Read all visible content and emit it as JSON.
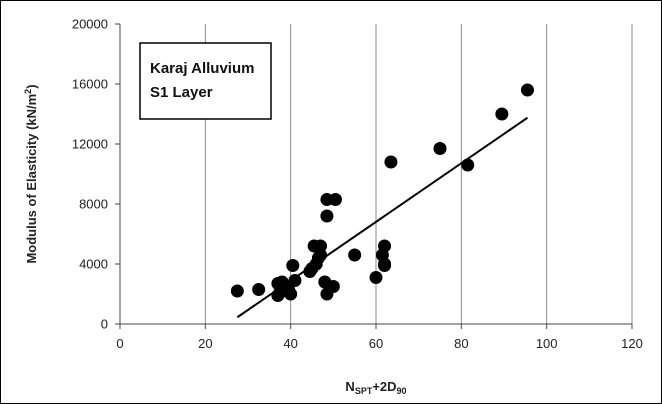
{
  "chart_data": {
    "type": "scatter",
    "title": "",
    "xlabel": {
      "main": "N",
      "sub1": "SPT",
      "mid": "+2D",
      "sub2": "90"
    },
    "ylabel": {
      "main": "Modulus of Elasticity (kN/m",
      "sup": "2",
      "end": ")"
    },
    "xlim": [
      0,
      120
    ],
    "ylim": [
      0,
      20000
    ],
    "xticks": [
      0,
      20,
      40,
      60,
      80,
      100,
      120
    ],
    "yticks": [
      0,
      4000,
      8000,
      12000,
      16000,
      20000
    ],
    "xtick_labels": [
      "0",
      "20",
      "40",
      "60",
      "80",
      "100",
      "120"
    ],
    "ytick_labels": [
      "0",
      "4000",
      "8000",
      "12000",
      "16000",
      "20000"
    ],
    "grid": "vertical",
    "annotation": [
      "Karaj Alluvium",
      "S1 Layer"
    ],
    "series": [
      {
        "x": [
          27.5,
          32.5,
          37,
          37.5,
          38,
          37,
          38,
          39.5,
          40,
          40.5,
          41,
          44.5,
          45,
          45.5,
          46,
          46.5,
          47,
          47,
          48,
          48.5,
          48.5,
          48.5,
          50,
          50.5,
          55,
          60,
          61.5,
          62,
          62,
          62,
          63.5,
          75,
          81.5,
          89.5,
          95.5
        ],
        "y": [
          2200,
          2300,
          1900,
          2100,
          2500,
          2700,
          2800,
          2300,
          2000,
          3900,
          2900,
          3500,
          3700,
          5200,
          4000,
          4400,
          4600,
          5200,
          2800,
          8300,
          7200,
          2000,
          2500,
          8300,
          4600,
          3100,
          4600,
          4000,
          5200,
          3900,
          10800,
          11700,
          10600,
          14000,
          15600
        ]
      }
    ],
    "trendline": {
      "x": [
        27.5,
        95.5
      ],
      "y": [
        450,
        13750
      ]
    }
  }
}
